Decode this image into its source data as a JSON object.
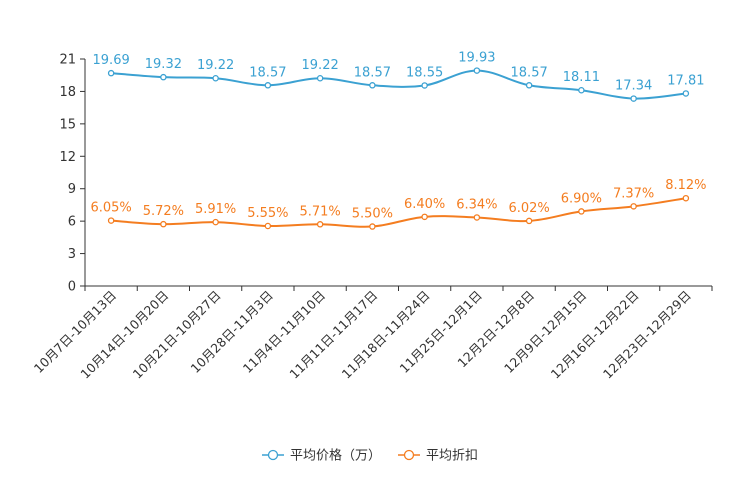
{
  "chart_data": {
    "type": "line",
    "categories": [
      "10月7日-10月13日",
      "10月14日-10月20日",
      "10月21日-10月27日",
      "10月28日-11月3日",
      "11月4日-11月10日",
      "11月11日-11月17日",
      "11月18日-11月24日",
      "11月25日-12月1日",
      "12月2日-12月8日",
      "12月9日-12月15日",
      "12月16日-12月22日",
      "12月23日-12月29日"
    ],
    "ylim": [
      0,
      21
    ],
    "yticks": [
      0,
      3,
      6,
      9,
      12,
      15,
      18,
      21
    ],
    "series": [
      {
        "name": "平均价格（万）",
        "color": "#3ba1d2",
        "values": [
          19.69,
          19.32,
          19.22,
          18.57,
          19.22,
          18.57,
          18.55,
          19.93,
          18.57,
          18.11,
          17.34,
          17.81
        ],
        "labels": [
          "19.69",
          "19.32",
          "19.22",
          "18.57",
          "19.22",
          "18.57",
          "18.55",
          "19.93",
          "18.57",
          "18.11",
          "17.34",
          "17.81"
        ]
      },
      {
        "name": "平均折扣",
        "color": "#f47d20",
        "values": [
          6.05,
          5.72,
          5.91,
          5.55,
          5.71,
          5.5,
          6.4,
          6.34,
          6.02,
          6.9,
          7.37,
          8.12
        ],
        "labels": [
          "6.05%",
          "5.72%",
          "5.91%",
          "5.55%",
          "5.71%",
          "5.50%",
          "6.40%",
          "6.34%",
          "6.02%",
          "6.90%",
          "7.37%",
          "8.12%"
        ]
      }
    ],
    "legend_position": "bottom-center",
    "grid": false
  }
}
